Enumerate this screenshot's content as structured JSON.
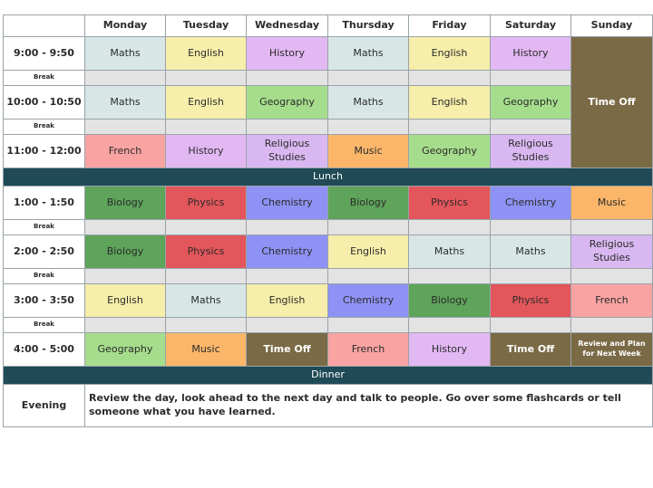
{
  "days": [
    "Monday",
    "Tuesday",
    "Wednesday",
    "Thursday",
    "Friday",
    "Saturday",
    "Sunday"
  ],
  "colors": {
    "Maths": "#d8e6e6",
    "English": "#f6eeaa",
    "History": "#e2b8f3",
    "Geography": "#a6dd8c",
    "Religious Studies": "#d9b8f1",
    "French": "#f9a3a3",
    "Music": "#fbb66a",
    "Biology": "#5ea45a",
    "Physics": "#e3565b",
    "Chemistry": "#8d92f4",
    "Time Off": "#7a6a45",
    "Review and Plan for Next Week": "#7a6a45",
    "break": "#e3e3e3",
    "divider": "#1f4a56"
  },
  "rows": [
    {
      "type": "main",
      "time": "9:00 - 9:50",
      "cells": [
        "Maths",
        "English",
        "History",
        "Maths",
        "English",
        "History"
      ]
    },
    {
      "type": "break",
      "label": "Break"
    },
    {
      "type": "main",
      "time": "10:00 - 10:50",
      "cells": [
        "Maths",
        "English",
        "Geography",
        "Maths",
        "English",
        "Geography"
      ]
    },
    {
      "type": "break",
      "label": "Break"
    },
    {
      "type": "main",
      "time": "11:00 - 12:00",
      "cells": [
        "French",
        "History",
        "Religious Studies",
        "Music",
        "Geography",
        "Religious Studies"
      ]
    },
    {
      "type": "meal",
      "label": "Lunch"
    },
    {
      "type": "main",
      "time": "1:00 - 1:50",
      "cells": [
        "Biology",
        "Physics",
        "Chemistry",
        "Biology",
        "Physics",
        "Chemistry",
        "Music"
      ]
    },
    {
      "type": "break",
      "label": "Break"
    },
    {
      "type": "main",
      "time": "2:00 - 2:50",
      "cells": [
        "Biology",
        "Physics",
        "Chemistry",
        "English",
        "Maths",
        "Maths",
        "Religious Studies"
      ]
    },
    {
      "type": "break",
      "label": "Break"
    },
    {
      "type": "main",
      "time": "3:00 - 3:50",
      "cells": [
        "English",
        "Maths",
        "English",
        "Chemistry",
        "Biology",
        "Physics",
        "French"
      ]
    },
    {
      "type": "break",
      "label": "Break"
    },
    {
      "type": "main",
      "time": "4:00 - 5:00",
      "cells": [
        "Geography",
        "Music",
        "Time Off",
        "French",
        "History",
        "Time Off",
        "Review and Plan for Next Week"
      ]
    },
    {
      "type": "meal",
      "label": "Dinner"
    },
    {
      "type": "evening",
      "time": "Evening",
      "text": "Review the day, look ahead to the next day and talk to people. Go over some flashcards or tell someone what you have learned."
    }
  ],
  "sunday_morning": "Time Off"
}
